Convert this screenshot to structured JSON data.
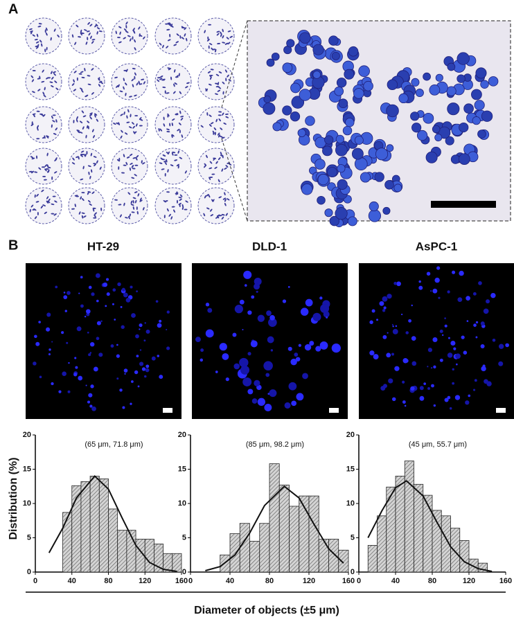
{
  "figure": {
    "panel_a": "A",
    "panel_b": "B",
    "ylabel": "Distribution (%)",
    "xlabel": "Diameter of objects  (±5  μm)"
  },
  "chart_data": [
    {
      "type": "histogram",
      "title": "HT-29",
      "annotation": "(65 μm, 71.8 μm)",
      "color": "#cfcfcf",
      "bins": [
        30,
        40,
        50,
        60,
        70,
        80,
        90,
        100,
        110,
        120,
        130,
        140,
        150,
        160
      ],
      "values": [
        8.7,
        12.6,
        13.2,
        14.0,
        13.6,
        9.2,
        6.1,
        6.1,
        4.8,
        4.8,
        4.1,
        2.7,
        2.7
      ],
      "fit": {
        "x": [
          15,
          30,
          45,
          65,
          80,
          95,
          110,
          125,
          140,
          155
        ],
        "values": [
          2.8,
          6.4,
          10.8,
          14.0,
          12.1,
          7.9,
          3.9,
          1.4,
          0.4,
          0.1
        ]
      },
      "xlim": [
        0,
        160
      ],
      "xticks": [
        0,
        40,
        80,
        120,
        160
      ],
      "ylim": [
        0,
        20
      ],
      "yticks": [
        0,
        5,
        10,
        15,
        20
      ]
    },
    {
      "type": "histogram",
      "title": "DLD-1",
      "annotation": "(85 μm, 98.2 μm)",
      "color": "#cfcfcf",
      "bins": [
        30,
        40,
        50,
        60,
        70,
        80,
        90,
        100,
        110,
        120,
        130,
        140,
        150,
        160
      ],
      "values": [
        2.5,
        5.6,
        7.1,
        4.5,
        7.1,
        15.8,
        12.7,
        9.6,
        11.1,
        11.1,
        4.8,
        4.8,
        3.2
      ],
      "fit": {
        "x": [
          15,
          30,
          45,
          60,
          75,
          95,
          110,
          125,
          140,
          155
        ],
        "values": [
          0.2,
          0.8,
          2.5,
          5.7,
          9.7,
          12.5,
          10.8,
          7.0,
          3.4,
          1.3
        ]
      },
      "xlim": [
        0,
        160
      ],
      "xticks": [
        0,
        40,
        80,
        120,
        160
      ],
      "ylim": [
        0,
        20
      ],
      "yticks": [
        0,
        5,
        10,
        15,
        20
      ]
    },
    {
      "type": "histogram",
      "title": "AsPC-1",
      "annotation": "(45 μm, 55.7 μm)",
      "color": "#cfcfcf",
      "bins": [
        10,
        20,
        30,
        40,
        50,
        60,
        70,
        80,
        90,
        100,
        110,
        120,
        130,
        140
      ],
      "values": [
        3.9,
        8.2,
        12.4,
        14.0,
        16.2,
        12.8,
        11.2,
        9.0,
        8.2,
        6.4,
        4.6,
        1.9,
        1.3
      ],
      "fit": {
        "x": [
          10,
          25,
          40,
          52,
          70,
          85,
          100,
          115,
          130,
          145
        ],
        "values": [
          5.0,
          8.9,
          12.3,
          13.3,
          11.1,
          7.3,
          3.7,
          1.5,
          0.5,
          0.1
        ]
      },
      "xlim": [
        0,
        160
      ],
      "xticks": [
        0,
        40,
        80,
        120,
        160
      ],
      "ylim": [
        0,
        20
      ],
      "yticks": [
        0,
        5,
        10,
        15,
        20
      ]
    }
  ]
}
